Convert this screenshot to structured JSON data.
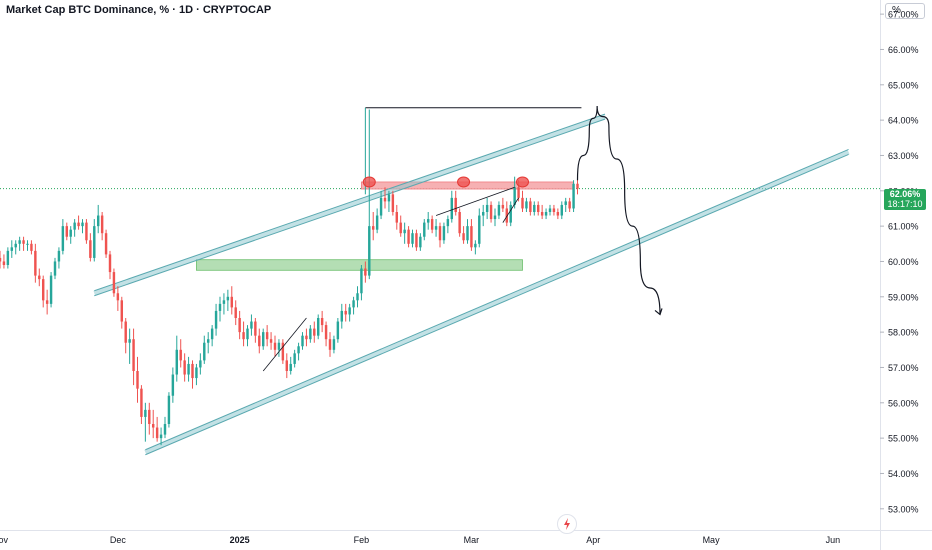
{
  "header": {
    "title": "Market Cap BTC Dominance, % · 1D · CRYPTOCAP",
    "unit": "%"
  },
  "price_badge": {
    "value": "62.06%",
    "timer": "18:17:10"
  },
  "colors": {
    "up": "#26a69a",
    "down": "#ef5350",
    "channel": "#8fc9cf",
    "support_zone": "#9bd39b",
    "resistance_zone": "#f4a3a6"
  },
  "chart_data": {
    "type": "candlestick",
    "ylim": [
      52.4,
      67.4
    ],
    "y_ticks": [
      "67.00%",
      "66.00%",
      "65.00%",
      "64.00%",
      "63.00%",
      "62.00%",
      "61.00%",
      "60.00%",
      "59.00%",
      "58.00%",
      "57.00%",
      "56.00%",
      "55.00%",
      "54.00%",
      "53.00%"
    ],
    "y_tick_values": [
      67,
      66,
      65,
      64,
      63,
      62,
      61,
      60,
      59,
      58,
      57,
      56,
      55,
      54,
      53
    ],
    "x_ticks": [
      "Nov",
      "Dec",
      "2025",
      "Feb",
      "Mar",
      "Apr",
      "May",
      "Jun"
    ],
    "x_tick_dates": [
      "2024-11-01",
      "2024-12-01",
      "2025-01-01",
      "2025-02-01",
      "2025-03-01",
      "2025-04-01",
      "2025-05-01",
      "2025-06-01"
    ],
    "x_range": [
      "2024-11-01",
      "2025-06-13"
    ],
    "last_value": 62.06,
    "candles": [
      [
        "2024-11-01",
        60.1,
        60.3,
        59.8,
        60.0
      ],
      [
        "2024-11-02",
        60.0,
        60.2,
        59.8,
        59.9
      ],
      [
        "2024-11-03",
        59.9,
        60.4,
        59.8,
        60.3
      ],
      [
        "2024-11-04",
        60.3,
        60.6,
        60.1,
        60.4
      ],
      [
        "2024-11-05",
        60.4,
        60.6,
        60.2,
        60.5
      ],
      [
        "2024-11-06",
        60.5,
        60.7,
        60.3,
        60.6
      ],
      [
        "2024-11-07",
        60.6,
        60.7,
        60.3,
        60.5
      ],
      [
        "2024-11-08",
        60.5,
        60.6,
        60.3,
        60.5
      ],
      [
        "2024-11-09",
        60.5,
        60.6,
        60.2,
        60.3
      ],
      [
        "2024-11-10",
        60.3,
        60.5,
        59.4,
        59.6
      ],
      [
        "2024-11-11",
        59.6,
        59.8,
        59.3,
        59.5
      ],
      [
        "2024-11-12",
        59.5,
        59.6,
        58.7,
        58.9
      ],
      [
        "2024-11-13",
        58.9,
        59.2,
        58.5,
        58.8
      ],
      [
        "2024-11-14",
        58.8,
        59.7,
        58.7,
        59.6
      ],
      [
        "2024-11-15",
        59.6,
        60.1,
        59.5,
        60.0
      ],
      [
        "2024-11-16",
        60.0,
        60.4,
        59.8,
        60.3
      ],
      [
        "2024-11-17",
        60.3,
        61.2,
        60.2,
        61.0
      ],
      [
        "2024-11-18",
        61.0,
        61.1,
        60.6,
        60.7
      ],
      [
        "2024-11-19",
        60.7,
        61.0,
        60.5,
        60.9
      ],
      [
        "2024-11-20",
        60.9,
        61.2,
        60.7,
        61.1
      ],
      [
        "2024-11-21",
        61.1,
        61.3,
        60.9,
        61.0
      ],
      [
        "2024-11-22",
        61.0,
        61.2,
        60.8,
        61.1
      ],
      [
        "2024-11-23",
        61.1,
        61.2,
        60.5,
        60.6
      ],
      [
        "2024-11-24",
        60.6,
        60.8,
        60.0,
        60.1
      ],
      [
        "2024-11-25",
        60.1,
        61.2,
        60.0,
        61.0
      ],
      [
        "2024-11-26",
        61.0,
        61.6,
        60.8,
        61.3
      ],
      [
        "2024-11-27",
        61.3,
        61.4,
        60.6,
        60.8
      ],
      [
        "2024-11-28",
        60.8,
        60.9,
        60.1,
        60.2
      ],
      [
        "2024-11-29",
        60.2,
        60.3,
        59.5,
        59.7
      ],
      [
        "2024-11-30",
        59.7,
        59.8,
        59.0,
        59.1
      ],
      [
        "2024-12-01",
        59.1,
        59.3,
        58.6,
        58.9
      ],
      [
        "2024-12-02",
        58.9,
        59.0,
        58.1,
        58.3
      ],
      [
        "2024-12-03",
        58.3,
        58.4,
        57.4,
        57.7
      ],
      [
        "2024-12-04",
        57.7,
        58.1,
        57.1,
        57.8
      ],
      [
        "2024-12-05",
        57.8,
        58.1,
        56.5,
        56.9
      ],
      [
        "2024-12-06",
        56.9,
        57.3,
        56.0,
        56.4
      ],
      [
        "2024-12-07",
        56.4,
        56.5,
        55.4,
        55.6
      ],
      [
        "2024-12-08",
        55.6,
        56.0,
        54.9,
        55.8
      ],
      [
        "2024-12-09",
        55.8,
        56.0,
        55.1,
        55.4
      ],
      [
        "2024-12-10",
        55.4,
        55.8,
        55.0,
        55.3
      ],
      [
        "2024-12-11",
        55.3,
        55.6,
        54.9,
        55.0
      ],
      [
        "2024-12-12",
        55.0,
        55.3,
        54.8,
        55.1
      ],
      [
        "2024-12-13",
        55.1,
        55.6,
        55.0,
        55.4
      ],
      [
        "2024-12-14",
        55.4,
        56.3,
        55.3,
        56.2
      ],
      [
        "2024-12-15",
        56.2,
        57.0,
        56.0,
        56.8
      ],
      [
        "2024-12-16",
        56.8,
        57.9,
        56.6,
        57.5
      ],
      [
        "2024-12-17",
        57.5,
        57.8,
        57.0,
        57.2
      ],
      [
        "2024-12-18",
        57.2,
        57.4,
        56.6,
        56.8
      ],
      [
        "2024-12-19",
        56.8,
        57.3,
        56.6,
        57.1
      ],
      [
        "2024-12-20",
        57.1,
        57.2,
        56.4,
        56.7
      ],
      [
        "2024-12-21",
        56.7,
        57.1,
        56.5,
        57.0
      ],
      [
        "2024-12-22",
        57.0,
        57.4,
        56.8,
        57.2
      ],
      [
        "2024-12-23",
        57.2,
        57.9,
        57.1,
        57.7
      ],
      [
        "2024-12-24",
        57.7,
        58.0,
        57.4,
        57.8
      ],
      [
        "2024-12-25",
        57.8,
        58.2,
        57.6,
        58.1
      ],
      [
        "2024-12-26",
        58.1,
        58.8,
        57.9,
        58.6
      ],
      [
        "2024-12-27",
        58.6,
        59.0,
        58.3,
        58.8
      ],
      [
        "2024-12-28",
        58.8,
        59.1,
        58.5,
        58.9
      ],
      [
        "2024-12-29",
        58.9,
        59.2,
        58.6,
        59.0
      ],
      [
        "2024-12-30",
        59.0,
        59.3,
        58.5,
        58.7
      ],
      [
        "2024-12-31",
        58.7,
        58.9,
        58.2,
        58.4
      ],
      [
        "2025-01-01",
        58.4,
        58.6,
        57.8,
        58.0
      ],
      [
        "2025-01-02",
        58.0,
        58.3,
        57.6,
        57.8
      ],
      [
        "2025-01-03",
        57.8,
        58.2,
        57.6,
        58.1
      ],
      [
        "2025-01-04",
        58.1,
        58.5,
        57.9,
        58.3
      ],
      [
        "2025-01-05",
        58.3,
        58.4,
        57.7,
        57.9
      ],
      [
        "2025-01-06",
        57.9,
        58.1,
        57.4,
        57.6
      ],
      [
        "2025-01-07",
        57.6,
        58.1,
        57.5,
        58.0
      ],
      [
        "2025-01-08",
        58.0,
        58.2,
        57.6,
        57.8
      ],
      [
        "2025-01-09",
        57.8,
        58.0,
        57.5,
        57.7
      ],
      [
        "2025-01-10",
        57.7,
        57.9,
        57.3,
        57.5
      ],
      [
        "2025-01-11",
        57.5,
        57.8,
        57.3,
        57.7
      ],
      [
        "2025-01-12",
        57.7,
        57.8,
        57.1,
        57.2
      ],
      [
        "2025-01-13",
        57.2,
        57.4,
        56.7,
        56.9
      ],
      [
        "2025-01-14",
        56.9,
        57.3,
        56.8,
        57.1
      ],
      [
        "2025-01-15",
        57.1,
        57.5,
        57.0,
        57.4
      ],
      [
        "2025-01-16",
        57.4,
        57.7,
        57.2,
        57.6
      ],
      [
        "2025-01-17",
        57.6,
        58.0,
        57.5,
        57.9
      ],
      [
        "2025-01-18",
        57.9,
        58.1,
        57.6,
        57.8
      ],
      [
        "2025-01-19",
        57.8,
        58.2,
        57.7,
        58.1
      ],
      [
        "2025-01-20",
        58.1,
        58.3,
        57.7,
        57.9
      ],
      [
        "2025-01-21",
        57.9,
        58.5,
        57.8,
        58.4
      ],
      [
        "2025-01-22",
        58.4,
        58.6,
        58.0,
        58.2
      ],
      [
        "2025-01-23",
        58.2,
        58.3,
        57.6,
        57.8
      ],
      [
        "2025-01-24",
        57.8,
        58.0,
        57.3,
        57.5
      ],
      [
        "2025-01-25",
        57.5,
        57.9,
        57.4,
        57.8
      ],
      [
        "2025-01-26",
        57.8,
        58.4,
        57.7,
        58.3
      ],
      [
        "2025-01-27",
        58.3,
        58.8,
        58.1,
        58.6
      ],
      [
        "2025-01-28",
        58.6,
        58.8,
        58.3,
        58.5
      ],
      [
        "2025-01-29",
        58.5,
        58.8,
        58.3,
        58.7
      ],
      [
        "2025-01-30",
        58.7,
        59.0,
        58.5,
        58.9
      ],
      [
        "2025-01-31",
        58.9,
        59.3,
        58.7,
        59.1
      ],
      [
        "2025-02-01",
        59.1,
        59.9,
        58.9,
        59.8
      ],
      [
        "2025-02-02",
        59.8,
        60.0,
        59.4,
        59.6
      ],
      [
        "2025-02-03",
        59.6,
        64.3,
        59.5,
        61.0
      ],
      [
        "2025-02-04",
        61.0,
        61.4,
        60.6,
        60.9
      ],
      [
        "2025-02-05",
        60.9,
        61.5,
        60.8,
        61.3
      ],
      [
        "2025-02-06",
        61.3,
        62.0,
        61.2,
        61.8
      ],
      [
        "2025-02-07",
        61.8,
        62.1,
        61.5,
        61.7
      ],
      [
        "2025-02-08",
        61.7,
        62.0,
        61.4,
        61.9
      ],
      [
        "2025-02-09",
        61.9,
        62.0,
        61.3,
        61.4
      ],
      [
        "2025-02-10",
        61.4,
        61.6,
        60.9,
        61.1
      ],
      [
        "2025-02-11",
        61.1,
        61.3,
        60.7,
        60.8
      ],
      [
        "2025-02-12",
        60.8,
        61.1,
        60.5,
        60.9
      ],
      [
        "2025-02-13",
        60.9,
        61.0,
        60.4,
        60.5
      ],
      [
        "2025-02-14",
        60.5,
        60.9,
        60.4,
        60.8
      ],
      [
        "2025-02-15",
        60.8,
        60.9,
        60.3,
        60.4
      ],
      [
        "2025-02-16",
        60.4,
        60.8,
        60.3,
        60.7
      ],
      [
        "2025-02-17",
        60.7,
        61.2,
        60.6,
        61.1
      ],
      [
        "2025-02-18",
        61.1,
        61.4,
        60.9,
        61.2
      ],
      [
        "2025-02-19",
        61.2,
        61.3,
        60.8,
        60.9
      ],
      [
        "2025-02-20",
        60.9,
        61.2,
        60.7,
        61.0
      ],
      [
        "2025-02-21",
        61.0,
        61.1,
        60.4,
        60.6
      ],
      [
        "2025-02-22",
        60.6,
        61.1,
        60.5,
        61.0
      ],
      [
        "2025-02-23",
        61.0,
        61.3,
        60.8,
        61.2
      ],
      [
        "2025-02-24",
        61.2,
        62.0,
        61.1,
        61.8
      ],
      [
        "2025-02-25",
        61.8,
        62.0,
        61.3,
        61.4
      ],
      [
        "2025-02-26",
        61.4,
        61.5,
        60.7,
        60.8
      ],
      [
        "2025-02-27",
        60.8,
        61.0,
        60.5,
        60.6
      ],
      [
        "2025-02-28",
        60.6,
        61.2,
        60.5,
        61.0
      ],
      [
        "2025-03-01",
        61.0,
        61.2,
        60.3,
        60.4
      ],
      [
        "2025-03-02",
        60.4,
        60.6,
        60.2,
        60.5
      ],
      [
        "2025-03-03",
        60.5,
        61.5,
        60.4,
        61.3
      ],
      [
        "2025-03-04",
        61.3,
        61.6,
        61.0,
        61.4
      ],
      [
        "2025-03-05",
        61.4,
        61.8,
        61.2,
        61.6
      ],
      [
        "2025-03-06",
        61.6,
        61.7,
        61.1,
        61.2
      ],
      [
        "2025-03-07",
        61.2,
        61.5,
        61.0,
        61.3
      ],
      [
        "2025-03-08",
        61.3,
        61.7,
        61.2,
        61.6
      ],
      [
        "2025-03-09",
        61.6,
        61.8,
        61.4,
        61.5
      ],
      [
        "2025-03-10",
        61.5,
        61.7,
        61.0,
        61.1
      ],
      [
        "2025-03-11",
        61.1,
        61.7,
        61.0,
        61.6
      ],
      [
        "2025-03-12",
        61.6,
        62.4,
        61.5,
        62.1
      ],
      [
        "2025-03-13",
        62.1,
        62.3,
        61.7,
        61.8
      ],
      [
        "2025-03-14",
        61.8,
        62.0,
        61.4,
        61.5
      ],
      [
        "2025-03-15",
        61.5,
        61.8,
        61.4,
        61.7
      ],
      [
        "2025-03-16",
        61.7,
        61.8,
        61.3,
        61.4
      ],
      [
        "2025-03-17",
        61.4,
        61.7,
        61.3,
        61.6
      ],
      [
        "2025-03-18",
        61.6,
        61.7,
        61.3,
        61.4
      ],
      [
        "2025-03-19",
        61.4,
        61.6,
        61.2,
        61.3
      ],
      [
        "2025-03-20",
        61.3,
        61.5,
        61.2,
        61.4
      ],
      [
        "2025-03-21",
        61.4,
        61.6,
        61.3,
        61.5
      ],
      [
        "2025-03-22",
        61.5,
        61.6,
        61.3,
        61.4
      ],
      [
        "2025-03-23",
        61.4,
        61.5,
        61.2,
        61.3
      ],
      [
        "2025-03-24",
        61.3,
        61.7,
        61.2,
        61.6
      ],
      [
        "2025-03-25",
        61.6,
        61.8,
        61.4,
        61.7
      ],
      [
        "2025-03-26",
        61.7,
        61.8,
        61.4,
        61.5
      ],
      [
        "2025-03-27",
        61.5,
        62.3,
        61.4,
        62.2
      ],
      [
        "2025-03-28",
        62.2,
        62.4,
        61.9,
        62.06
      ]
    ],
    "drawings": {
      "channel_upper": [
        [
          "2024-11-25",
          59.1
        ],
        [
          "2025-04-04",
          64.1
        ]
      ],
      "channel_lower": [
        [
          "2024-12-08",
          54.6
        ],
        [
          "2025-06-05",
          63.1
        ]
      ],
      "resistance_zone": {
        "from": "2025-02-01",
        "to": "2025-03-27",
        "y_top": 62.25,
        "y_bottom": 62.05
      },
      "support_zone": {
        "from": "2024-12-21",
        "to": "2025-03-14",
        "y_top": 60.05,
        "y_bottom": 59.75
      },
      "bracket_top": {
        "from": "2025-02-02",
        "to": "2025-03-29",
        "y": 64.35,
        "drop_to": 61.9
      },
      "resistance_touches": [
        [
          "2025-02-03",
          62.25
        ],
        [
          "2025-02-27",
          62.25
        ],
        [
          "2025-03-14",
          62.25
        ]
      ],
      "projection": [
        [
          "2025-03-28",
          62.3
        ],
        [
          "2025-03-31",
          63.7
        ],
        [
          "2025-04-02",
          64.4
        ],
        [
          "2025-04-05",
          63.8
        ],
        [
          "2025-04-09",
          62.0
        ],
        [
          "2025-04-13",
          60.0
        ],
        [
          "2025-04-18",
          58.5
        ]
      ]
    }
  }
}
